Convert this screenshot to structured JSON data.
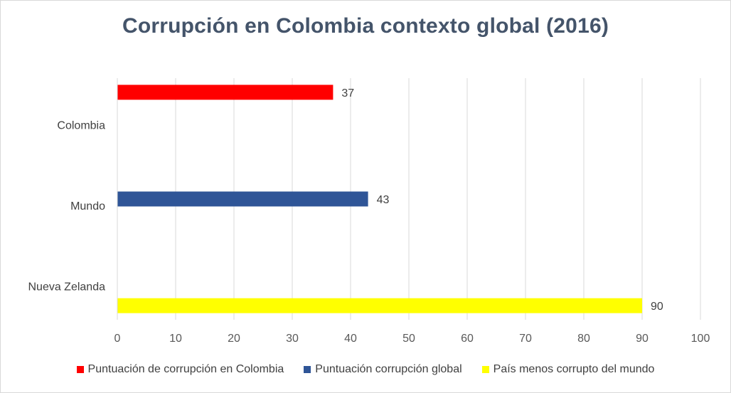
{
  "chart_data": {
    "type": "bar",
    "orientation": "horizontal",
    "title": "Corrupción en Colombia contexto global (2016)",
    "categories": [
      "Colombia",
      "Mundo",
      "Nueva Zelanda"
    ],
    "series": [
      {
        "name": "Puntuación de corrupción en Colombia",
        "values": [
          37,
          null,
          null
        ],
        "color": "#ff0000"
      },
      {
        "name": "Puntuación corrupción global",
        "values": [
          null,
          43,
          null
        ],
        "color": "#2f5597"
      },
      {
        "name": "País menos corrupto del mundo",
        "values": [
          null,
          null,
          90
        ],
        "color": "#ffff00"
      }
    ],
    "x_ticks": [
      "0",
      "10",
      "20",
      "30",
      "40",
      "50",
      "60",
      "70",
      "80",
      "90",
      "100"
    ],
    "xlim": [
      0,
      100
    ],
    "grid": "vertical",
    "legend_position": "bottom"
  }
}
